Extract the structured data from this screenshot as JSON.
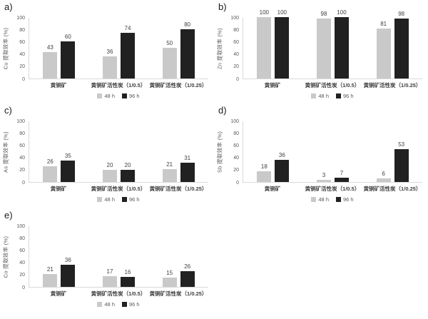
{
  "figure": {
    "background": "#ffffff"
  },
  "colors": {
    "bar_48h": "#c9c9c9",
    "bar_96h": "#212121",
    "axis_line": "#d9d9d9",
    "tick_text": "#595959",
    "label_text": "#404040"
  },
  "chart_data": [
    {
      "type": "bar",
      "letter": "a)",
      "ylabel": "Cu 提取效率 (%)",
      "categories": [
        "黄铜矿",
        "黄铜矿活性炭（1/0.5）",
        "黄铜矿活性炭（1/0.25）"
      ],
      "series": [
        {
          "name": "48 h",
          "color": "#c9c9c9",
          "values": [
            43,
            36,
            50
          ]
        },
        {
          "name": "96 h",
          "color": "#212121",
          "values": [
            60,
            74,
            80
          ]
        }
      ],
      "ylim": [
        0,
        100
      ],
      "yticks": [
        0,
        20,
        40,
        60,
        80,
        100
      ],
      "grid": false,
      "legend_position": "bottom"
    },
    {
      "type": "bar",
      "letter": "b)",
      "ylabel": "Zn 提取效率 (%)",
      "categories": [
        "黄铜矿",
        "黄铜矿活性炭（1/0.5）",
        "黄铜矿活性炭（1/0.25）"
      ],
      "series": [
        {
          "name": "48 h",
          "color": "#c9c9c9",
          "values": [
            100,
            98,
            81
          ]
        },
        {
          "name": "96 h",
          "color": "#212121",
          "values": [
            100,
            100,
            98
          ]
        }
      ],
      "ylim": [
        0,
        100
      ],
      "yticks": [
        0,
        20,
        40,
        60,
        80,
        100
      ],
      "grid": false,
      "legend_position": "bottom"
    },
    {
      "type": "bar",
      "letter": "c)",
      "ylabel": "As 提取效率 (%)",
      "categories": [
        "黄铜矿",
        "黄铜矿活性炭（1/0.5）",
        "黄铜矿活性炭（1/0.25）"
      ],
      "series": [
        {
          "name": "48 h",
          "color": "#c9c9c9",
          "values": [
            26,
            20,
            21
          ]
        },
        {
          "name": "96 h",
          "color": "#212121",
          "values": [
            35,
            20,
            31
          ]
        }
      ],
      "ylim": [
        0,
        100
      ],
      "yticks": [
        0,
        20,
        40,
        60,
        80,
        100
      ],
      "grid": false,
      "legend_position": "bottom"
    },
    {
      "type": "bar",
      "letter": "d)",
      "ylabel": "Sb 提取效率 (%)",
      "categories": [
        "黄铜矿",
        "黄铜矿活性炭（1/0.5）",
        "黄铜矿活性炭（1/0.25）"
      ],
      "series": [
        {
          "name": "48 h",
          "color": "#c9c9c9",
          "values": [
            18,
            3,
            6
          ]
        },
        {
          "name": "96 h",
          "color": "#212121",
          "values": [
            36,
            7,
            53
          ]
        }
      ],
      "ylim": [
        0,
        100
      ],
      "yticks": [
        0,
        20,
        40,
        60,
        80,
        100
      ],
      "grid": false,
      "legend_position": "bottom"
    },
    {
      "type": "bar",
      "letter": "e)",
      "ylabel": "Co 提取效率 (%)",
      "categories": [
        "黄铜矿",
        "黄铜矿活性炭（1/0.5）",
        "黄铜矿活性炭（1/0.25）"
      ],
      "series": [
        {
          "name": "48 h",
          "color": "#c9c9c9",
          "values": [
            21,
            17,
            15
          ]
        },
        {
          "name": "96 h",
          "color": "#212121",
          "values": [
            36,
            16,
            26
          ]
        }
      ],
      "ylim": [
        0,
        100
      ],
      "yticks": [
        0,
        20,
        40,
        60,
        80,
        100
      ],
      "grid": false,
      "legend_position": "bottom"
    }
  ]
}
